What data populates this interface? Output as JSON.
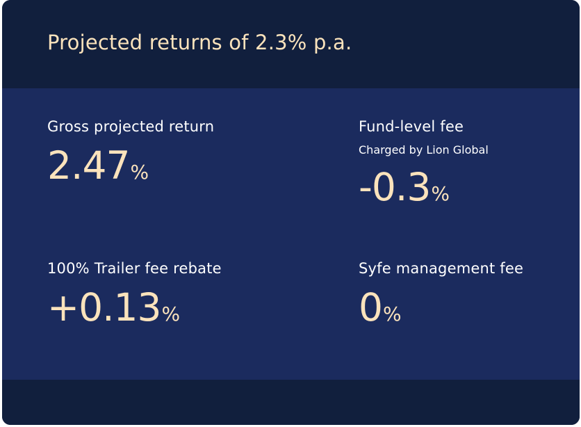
{
  "card": {
    "title": "Projected returns of 2.3% p.a."
  },
  "metrics": {
    "gross": {
      "label": "Gross projected return",
      "value": "2.47",
      "unit": "%"
    },
    "fund_fee": {
      "label": "Fund-level fee",
      "sublabel": "Charged by Lion Global",
      "value": "-0.3",
      "unit": "%"
    },
    "trailer_rebate": {
      "label": "100% Trailer fee rebate",
      "value": "+0.13",
      "unit": "%"
    },
    "syfe_fee": {
      "label": "Syfe management fee",
      "value": "0",
      "unit": "%"
    }
  },
  "colors": {
    "card_background": "#111f3d",
    "body_background": "#1b2b5e",
    "accent_text": "#fbe3bc",
    "label_text": "#ffffff"
  }
}
